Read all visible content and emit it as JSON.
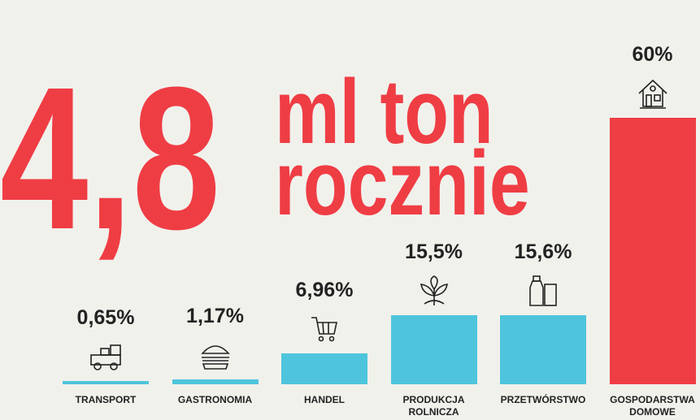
{
  "headline": {
    "number": "4,8",
    "line1": "ml ton",
    "line2": "rocznie"
  },
  "chart_data": {
    "type": "bar",
    "categories": [
      "TRANSPORT",
      "GASTRONOMIA",
      "HANDEL",
      "PRODUKCJA ROLNICZA",
      "PRZETWÓRSTWO",
      "GOSPODARSTWA DOMOWE"
    ],
    "values": [
      0.65,
      1.17,
      6.96,
      15.5,
      15.6,
      60
    ],
    "value_labels": [
      "0,65%",
      "1,17%",
      "6,96%",
      "15,5%",
      "15,6%",
      "60%"
    ],
    "colors": [
      "#4ec5dc",
      "#4ec5dc",
      "#4ec5dc",
      "#4ec5dc",
      "#4ec5dc",
      "#ef3d44"
    ]
  }
}
